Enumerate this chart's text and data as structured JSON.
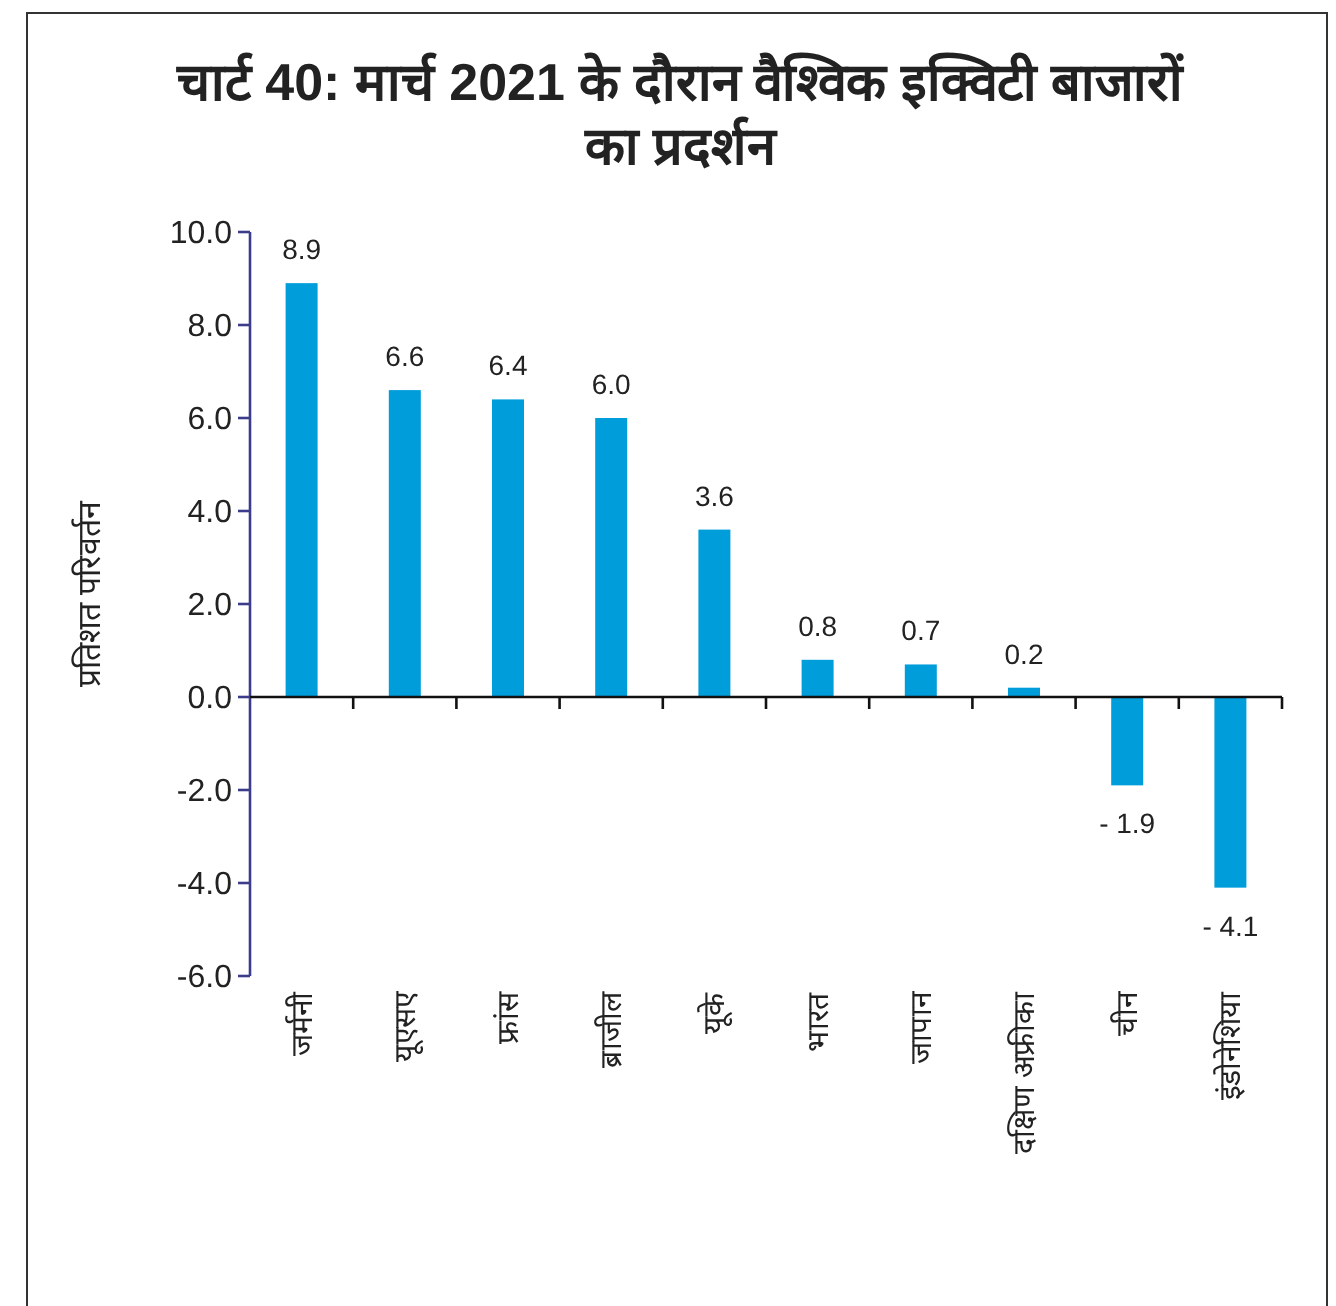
{
  "chart_data": {
    "type": "bar",
    "title": "चार्ट 40: मार्च 2021 के दौरान वैश्विक इक्विटी बाजारों का प्रदर्शन",
    "ylabel": "प्रतिशत परिवर्तन",
    "categories": [
      "जर्मनी",
      "यूएसए",
      "फ्रांस",
      "ब्राजील",
      "यूके",
      "भारत",
      "जापान",
      "दक्षिण अफ्रीका",
      "चीन",
      "इंडोनेशिया"
    ],
    "values": [
      8.9,
      6.6,
      6.4,
      6.0,
      3.6,
      0.8,
      0.7,
      0.2,
      -1.9,
      -4.1
    ],
    "value_labels": [
      "8.9",
      "6.6",
      "6.4",
      "6.0",
      "3.6",
      "0.8",
      "0.7",
      "0.2",
      "- 1.9",
      "- 4.1"
    ],
    "color": "#009ddb",
    "ylim": [
      -6,
      10
    ],
    "yticks": [
      {
        "value": 10,
        "label": "10.0"
      },
      {
        "value": 8,
        "label": "8.0"
      },
      {
        "value": 6,
        "label": "6.0"
      },
      {
        "value": 4,
        "label": "4.0"
      },
      {
        "value": 2,
        "label": "2.0"
      },
      {
        "value": 0,
        "label": "0.0"
      },
      {
        "value": -2,
        "label": "-2.0"
      },
      {
        "value": -4,
        "label": "-4.0"
      },
      {
        "value": -6,
        "label": "-6.0"
      }
    ]
  }
}
